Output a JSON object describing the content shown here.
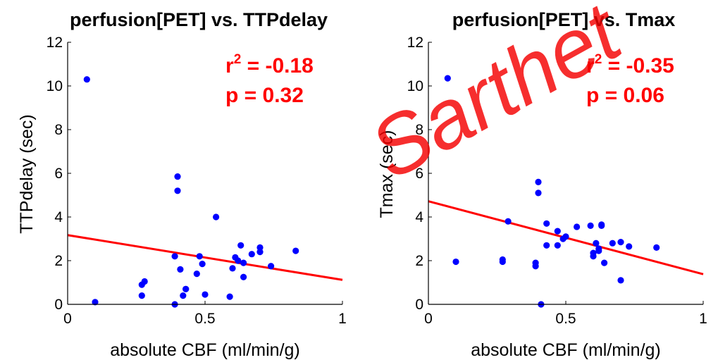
{
  "colors": {
    "points": "#0000ff",
    "fit_line": "#ff0000",
    "stats": "#ff0000",
    "axes": "#000000",
    "watermark": "#ff0000"
  },
  "watermark_text": "Sarthet",
  "chart_data": [
    {
      "type": "scatter",
      "title": "perfusion[PET] vs. TTPdelay",
      "xlabel": "absolute CBF (ml/min/g)",
      "ylabel": "TTPdelay (sec)",
      "xlim": [
        0,
        1
      ],
      "ylim": [
        0,
        12
      ],
      "xticks": [
        0,
        0.5,
        1
      ],
      "xtick_labels": [
        "0",
        "0.5",
        "1"
      ],
      "yticks": [
        0,
        2,
        4,
        6,
        8,
        10,
        12
      ],
      "ytick_labels": [
        "0",
        "2",
        "4",
        "6",
        "8",
        "10",
        "12"
      ],
      "stats": {
        "r2_prefix": "r",
        "r2_sup": "2",
        "r2_value": " = -0.18",
        "p_text": "p = 0.32"
      },
      "fit_line": {
        "x": [
          0,
          1
        ],
        "y": [
          3.17,
          1.12
        ]
      },
      "points": {
        "x": [
          0.07,
          0.1,
          0.27,
          0.27,
          0.28,
          0.39,
          0.39,
          0.4,
          0.4,
          0.41,
          0.42,
          0.43,
          0.43,
          0.47,
          0.48,
          0.49,
          0.5,
          0.54,
          0.59,
          0.6,
          0.61,
          0.62,
          0.63,
          0.64,
          0.64,
          0.67,
          0.7,
          0.7,
          0.74,
          0.83
        ],
        "y": [
          10.3,
          0.1,
          0.9,
          0.4,
          1.05,
          0.0,
          2.2,
          5.85,
          5.2,
          1.6,
          0.4,
          0.7,
          0.7,
          1.4,
          2.2,
          1.85,
          0.45,
          4.0,
          0.35,
          1.65,
          2.15,
          2.0,
          2.7,
          1.25,
          1.9,
          2.3,
          2.6,
          2.4,
          1.75,
          2.45
        ]
      }
    },
    {
      "type": "scatter",
      "title": "perfusion[PET] vs. Tmax",
      "xlabel": "absolute CBF (ml/min/g)",
      "ylabel": "Tmax (sec)",
      "xlim": [
        0,
        1
      ],
      "ylim": [
        0,
        12
      ],
      "xticks": [
        0,
        0.5,
        1
      ],
      "xtick_labels": [
        "0",
        "0.5",
        "1"
      ],
      "yticks": [
        0,
        2,
        4,
        6,
        8,
        10,
        12
      ],
      "ytick_labels": [
        "0",
        "2",
        "4",
        "6",
        "8",
        "10",
        "12"
      ],
      "stats": {
        "r2_prefix": "r",
        "r2_sup": "2",
        "r2_value": " = -0.35",
        "p_text": "p = 0.06"
      },
      "fit_line": {
        "x": [
          0,
          1
        ],
        "y": [
          4.72,
          1.38
        ]
      },
      "points": {
        "x": [
          0.07,
          0.1,
          0.27,
          0.27,
          0.29,
          0.39,
          0.39,
          0.4,
          0.4,
          0.41,
          0.43,
          0.43,
          0.47,
          0.47,
          0.49,
          0.5,
          0.54,
          0.59,
          0.6,
          0.6,
          0.61,
          0.62,
          0.62,
          0.63,
          0.63,
          0.64,
          0.67,
          0.7,
          0.7,
          0.73,
          0.83
        ],
        "y": [
          10.35,
          1.95,
          1.95,
          2.05,
          3.8,
          1.9,
          1.75,
          5.6,
          5.1,
          0.0,
          3.7,
          2.7,
          3.35,
          2.7,
          3.0,
          3.1,
          3.55,
          3.6,
          2.2,
          2.35,
          2.8,
          2.55,
          2.45,
          3.6,
          3.65,
          1.9,
          2.8,
          2.85,
          1.1,
          2.65,
          2.6
        ]
      }
    }
  ]
}
